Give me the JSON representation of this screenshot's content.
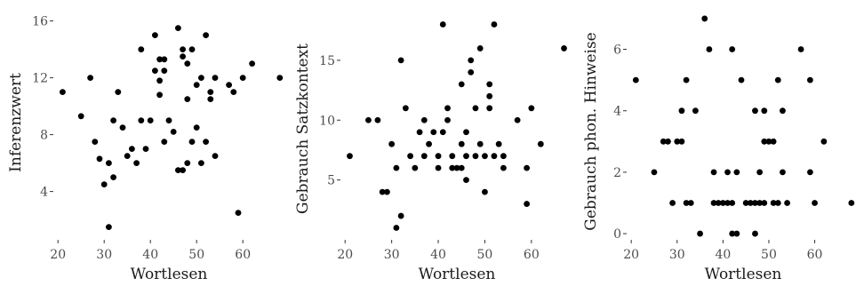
{
  "chart_data": [
    {
      "type": "scatter",
      "xlabel": "Wortlesen",
      "ylabel": "Inferenzwert",
      "xlim": [
        19,
        69
      ],
      "ylim": [
        0.6,
        16.6
      ],
      "xticks": [
        20,
        30,
        40,
        50,
        60
      ],
      "yticks": [
        4,
        8,
        12,
        16
      ],
      "grid": false,
      "points": [
        [
          21,
          11
        ],
        [
          25,
          9.3
        ],
        [
          27,
          12
        ],
        [
          28,
          7.5
        ],
        [
          29,
          6.3
        ],
        [
          30,
          4.5
        ],
        [
          31,
          6
        ],
        [
          31,
          1.5
        ],
        [
          32,
          9
        ],
        [
          32,
          5
        ],
        [
          33,
          11
        ],
        [
          34,
          8.5
        ],
        [
          35,
          6.5
        ],
        [
          36,
          7
        ],
        [
          37,
          6
        ],
        [
          38,
          14
        ],
        [
          38,
          9
        ],
        [
          39,
          7
        ],
        [
          40,
          9
        ],
        [
          41,
          15
        ],
        [
          41,
          12.5
        ],
        [
          42,
          11.8
        ],
        [
          42,
          10.8
        ],
        [
          42,
          13.3
        ],
        [
          43,
          13.3
        ],
        [
          43,
          7.5
        ],
        [
          43,
          12.5
        ],
        [
          44,
          9
        ],
        [
          45,
          8.2
        ],
        [
          46,
          15.5
        ],
        [
          46,
          5.5
        ],
        [
          47,
          13.5
        ],
        [
          47,
          14
        ],
        [
          47,
          5.5
        ],
        [
          48,
          13
        ],
        [
          48,
          10.5
        ],
        [
          48,
          6
        ],
        [
          49,
          14
        ],
        [
          49,
          7.5
        ],
        [
          50,
          11.5
        ],
        [
          50,
          8.5
        ],
        [
          51,
          12
        ],
        [
          51,
          6
        ],
        [
          52,
          15
        ],
        [
          52,
          7.5
        ],
        [
          53,
          11
        ],
        [
          53,
          10.5
        ],
        [
          54,
          12
        ],
        [
          54,
          6.5
        ],
        [
          57,
          11.5
        ],
        [
          58,
          11
        ],
        [
          59,
          2.5
        ],
        [
          60,
          12
        ],
        [
          62,
          13
        ],
        [
          68,
          12
        ]
      ]
    },
    {
      "type": "scatter",
      "xlabel": "Wortlesen",
      "ylabel": "Gebrauch Satzkontext",
      "xlim": [
        19,
        69
      ],
      "ylim": [
        0,
        19
      ],
      "xticks": [
        20,
        30,
        40,
        50,
        60
      ],
      "yticks": [
        5,
        10,
        15
      ],
      "grid": false,
      "points": [
        [
          21,
          7
        ],
        [
          25,
          10
        ],
        [
          27,
          10
        ],
        [
          28,
          4
        ],
        [
          29,
          4
        ],
        [
          30,
          8
        ],
        [
          31,
          6
        ],
        [
          31,
          1
        ],
        [
          32,
          2
        ],
        [
          32,
          15
        ],
        [
          33,
          11
        ],
        [
          34,
          7
        ],
        [
          35,
          6
        ],
        [
          36,
          9
        ],
        [
          37,
          10
        ],
        [
          37,
          7
        ],
        [
          38,
          8
        ],
        [
          39,
          9
        ],
        [
          40,
          7
        ],
        [
          40,
          6
        ],
        [
          41,
          18
        ],
        [
          41,
          9
        ],
        [
          42,
          11
        ],
        [
          42,
          10
        ],
        [
          43,
          6
        ],
        [
          43,
          7
        ],
        [
          44,
          6
        ],
        [
          45,
          13
        ],
        [
          45,
          8
        ],
        [
          45,
          6
        ],
        [
          46,
          5
        ],
        [
          46,
          7
        ],
        [
          46,
          9
        ],
        [
          47,
          15
        ],
        [
          47,
          14
        ],
        [
          48,
          11
        ],
        [
          48,
          7
        ],
        [
          49,
          16
        ],
        [
          49,
          8
        ],
        [
          50,
          4
        ],
        [
          50,
          7
        ],
        [
          51,
          13
        ],
        [
          51,
          12
        ],
        [
          51,
          11
        ],
        [
          52,
          18
        ],
        [
          52,
          7
        ],
        [
          53,
          8
        ],
        [
          54,
          6
        ],
        [
          54,
          7
        ],
        [
          57,
          10
        ],
        [
          59,
          6
        ],
        [
          59,
          3
        ],
        [
          60,
          11
        ],
        [
          62,
          8
        ],
        [
          67,
          16
        ]
      ]
    },
    {
      "type": "scatter",
      "xlabel": "Wortlesen",
      "ylabel": "Gebrauch phon. Hinweise",
      "xlim": [
        19,
        69
      ],
      "ylim": [
        -0.2,
        7.2
      ],
      "xticks": [
        20,
        30,
        40,
        50,
        60
      ],
      "yticks": [
        0,
        2,
        4,
        6
      ],
      "grid": false,
      "points": [
        [
          21,
          5
        ],
        [
          25,
          2
        ],
        [
          27,
          3
        ],
        [
          28,
          3
        ],
        [
          29,
          1
        ],
        [
          30,
          3
        ],
        [
          31,
          3
        ],
        [
          31,
          4
        ],
        [
          32,
          1
        ],
        [
          32,
          5
        ],
        [
          33,
          1
        ],
        [
          34,
          4
        ],
        [
          35,
          0
        ],
        [
          36,
          7
        ],
        [
          37,
          6
        ],
        [
          38,
          2
        ],
        [
          38,
          1
        ],
        [
          39,
          1
        ],
        [
          40,
          1
        ],
        [
          41,
          2
        ],
        [
          41,
          1
        ],
        [
          42,
          6
        ],
        [
          42,
          1
        ],
        [
          42,
          0
        ],
        [
          43,
          2
        ],
        [
          43,
          0
        ],
        [
          44,
          5
        ],
        [
          45,
          1
        ],
        [
          46,
          1
        ],
        [
          47,
          1
        ],
        [
          47,
          4
        ],
        [
          47,
          0
        ],
        [
          48,
          1
        ],
        [
          48,
          2
        ],
        [
          49,
          4
        ],
        [
          49,
          3
        ],
        [
          49,
          1
        ],
        [
          50,
          3
        ],
        [
          51,
          3
        ],
        [
          51,
          1
        ],
        [
          52,
          5
        ],
        [
          52,
          1
        ],
        [
          53,
          4
        ],
        [
          53,
          2
        ],
        [
          54,
          1
        ],
        [
          57,
          6
        ],
        [
          59,
          5
        ],
        [
          59,
          2
        ],
        [
          60,
          1
        ],
        [
          62,
          3
        ],
        [
          68,
          1
        ]
      ]
    }
  ]
}
